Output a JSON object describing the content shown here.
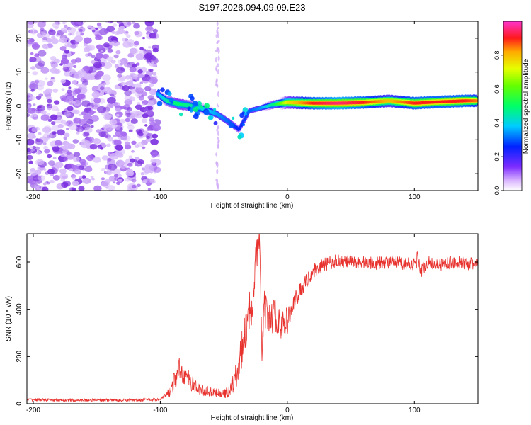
{
  "title": "S197.2026.094.09.09.E23",
  "colors": {
    "snr_line": "#e8322e",
    "scatter": "#7b2fe0",
    "axis": "#000000"
  },
  "colorbar": {
    "label": "Normalized spectral amplitude",
    "ticks": [
      "0.0",
      "0.2",
      "0.4",
      "0.6",
      "0.8"
    ],
    "tick_values": [
      0.0,
      0.2,
      0.4,
      0.6,
      0.8
    ],
    "range": [
      0,
      1
    ]
  },
  "chart_data": [
    {
      "type": "heatmap",
      "title": "S197.2026.094.09.09.E23",
      "xlabel": "Height of straight line (km)",
      "ylabel": "Frequency (Hz)",
      "xlim": [
        -205,
        150
      ],
      "ylim": [
        -25,
        25
      ],
      "xticks": [
        -200,
        -100,
        0,
        100
      ],
      "xtick_labels": [
        "-200",
        "-100",
        "0",
        "100"
      ],
      "yticks": [
        -20,
        -10,
        0,
        10,
        20
      ],
      "ytick_labels": [
        "-20",
        "-10",
        "0",
        "10",
        "20"
      ],
      "noise_region_x": [
        -205,
        -102
      ],
      "weak_column_x": -55,
      "signal_track": [
        {
          "x": -102,
          "f": 3.5,
          "a": 0.35
        },
        {
          "x": -95,
          "f": 1.5,
          "a": 0.45
        },
        {
          "x": -85,
          "f": 0.5,
          "a": 0.5
        },
        {
          "x": -75,
          "f": 0.0,
          "a": 0.45
        },
        {
          "x": -65,
          "f": -1.0,
          "a": 0.4
        },
        {
          "x": -55,
          "f": -2.5,
          "a": 0.35
        },
        {
          "x": -45,
          "f": -5.0,
          "a": 0.3
        },
        {
          "x": -38,
          "f": -7.0,
          "a": 0.25
        },
        {
          "x": -30,
          "f": -1.5,
          "a": 0.3
        },
        {
          "x": -20,
          "f": -0.5,
          "a": 0.35
        },
        {
          "x": -10,
          "f": 0.5,
          "a": 0.5
        },
        {
          "x": 0,
          "f": 1.0,
          "a": 0.75
        },
        {
          "x": 20,
          "f": 0.8,
          "a": 0.9
        },
        {
          "x": 40,
          "f": 0.8,
          "a": 0.95
        },
        {
          "x": 60,
          "f": 1.0,
          "a": 0.9
        },
        {
          "x": 80,
          "f": 1.5,
          "a": 0.8
        },
        {
          "x": 100,
          "f": 0.8,
          "a": 0.9
        },
        {
          "x": 120,
          "f": 1.2,
          "a": 0.9
        },
        {
          "x": 140,
          "f": 1.5,
          "a": 0.9
        },
        {
          "x": 150,
          "f": 1.5,
          "a": 0.85
        }
      ]
    },
    {
      "type": "line",
      "xlabel": "Height of straight line (km)",
      "ylabel": "SNR (10 * v/v)",
      "xlim": [
        -205,
        150
      ],
      "ylim": [
        0,
        720
      ],
      "xticks": [
        -200,
        -100,
        0,
        100
      ],
      "xtick_labels": [
        "-200",
        "-100",
        "0",
        "100"
      ],
      "yticks": [
        0,
        200,
        400,
        600
      ],
      "ytick_labels": [
        "0",
        "200",
        "400",
        "600"
      ],
      "series": [
        {
          "name": "SNR",
          "x": [
            -205,
            -190,
            -170,
            -150,
            -130,
            -110,
            -100,
            -95,
            -90,
            -85,
            -80,
            -75,
            -70,
            -65,
            -60,
            -55,
            -50,
            -45,
            -40,
            -35,
            -30,
            -27,
            -25,
            -22,
            -20,
            -18,
            -15,
            -10,
            -5,
            0,
            5,
            10,
            15,
            20,
            25,
            30,
            35,
            40,
            50,
            60,
            70,
            80,
            90,
            100,
            103,
            105,
            110,
            120,
            130,
            140,
            150
          ],
          "y": [
            18,
            16,
            15,
            16,
            15,
            17,
            18,
            35,
            80,
            140,
            120,
            85,
            60,
            55,
            50,
            45,
            40,
            60,
            120,
            250,
            380,
            450,
            600,
            700,
            230,
            400,
            350,
            380,
            330,
            350,
            420,
            480,
            520,
            560,
            580,
            590,
            600,
            605,
            600,
            600,
            595,
            600,
            595,
            590,
            620,
            560,
            600,
            590,
            600,
            595,
            590
          ],
          "jitter": [
            6,
            6,
            6,
            6,
            6,
            6,
            6,
            15,
            40,
            55,
            45,
            35,
            25,
            25,
            20,
            18,
            20,
            30,
            60,
            80,
            90,
            90,
            80,
            50,
            70,
            80,
            80,
            70,
            60,
            60,
            45,
            35,
            30,
            30,
            30,
            30,
            30,
            30,
            28,
            28,
            28,
            28,
            28,
            28,
            40,
            30,
            28,
            28,
            28,
            28,
            28
          ]
        }
      ]
    }
  ]
}
